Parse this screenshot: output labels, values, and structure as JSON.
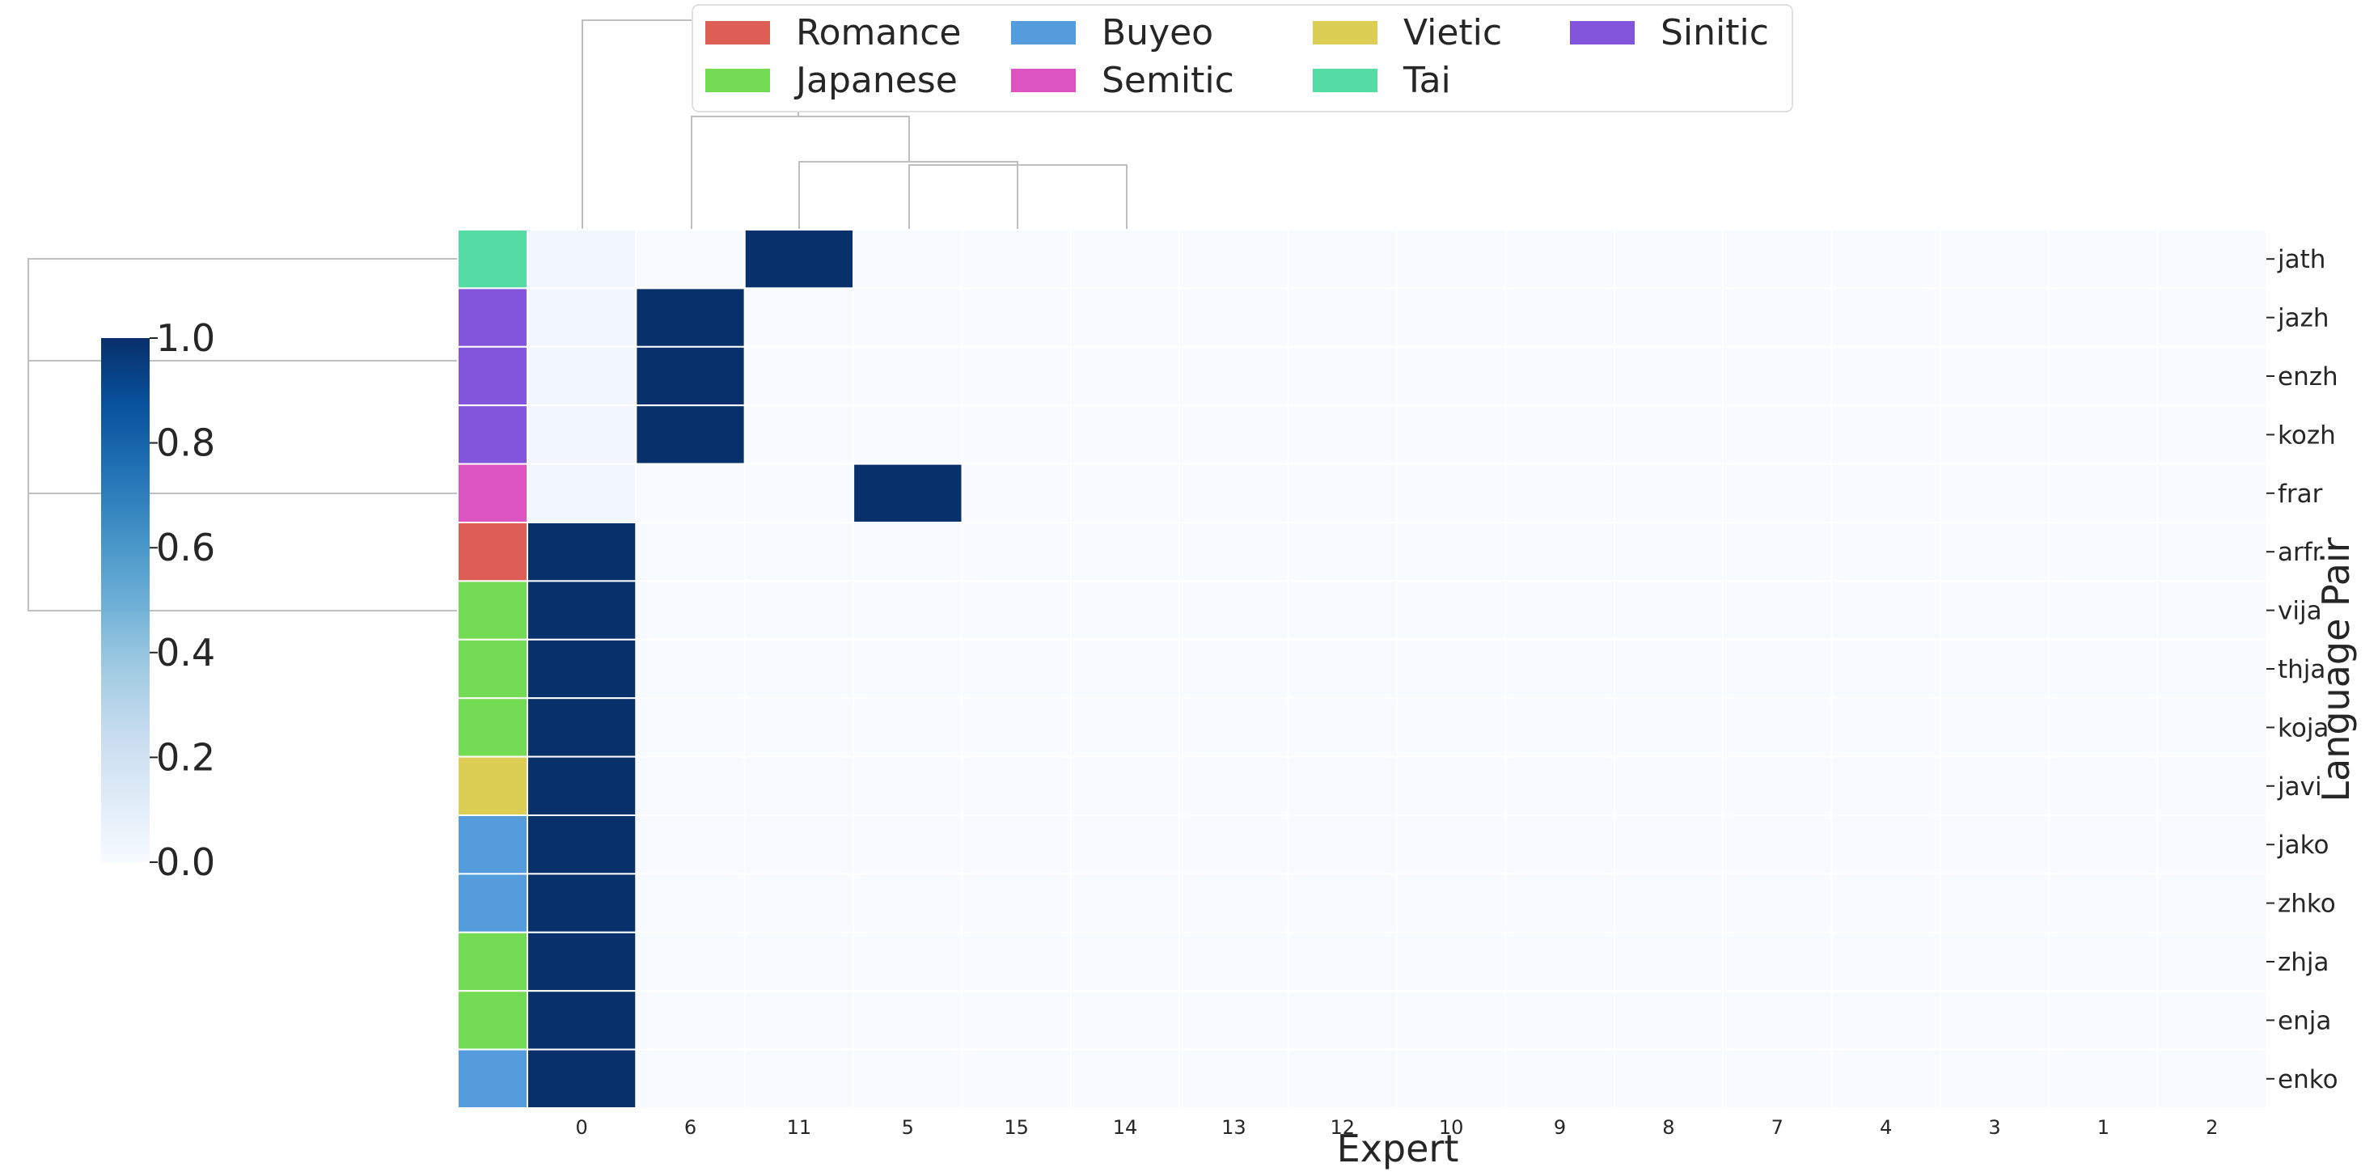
{
  "chart_data": {
    "type": "heatmap",
    "title": "",
    "xlabel": "Expert",
    "ylabel": "Language Pair",
    "x_categories": [
      "0",
      "6",
      "11",
      "5",
      "15",
      "14",
      "13",
      "12",
      "10",
      "9",
      "8",
      "7",
      "4",
      "3",
      "1",
      "2"
    ],
    "y_categories": [
      "jath",
      "jazh",
      "enzh",
      "kozh",
      "frar",
      "arfr",
      "vija",
      "thja",
      "koja",
      "javi",
      "jako",
      "zhko",
      "zhja",
      "enja",
      "enko"
    ],
    "row_groups": [
      "Tai",
      "Sinitic",
      "Sinitic",
      "Sinitic",
      "Semitic",
      "Romance",
      "Japanese",
      "Japanese",
      "Japanese",
      "Vietic",
      "Buyeo",
      "Buyeo",
      "Japanese",
      "Japanese",
      "Buyeo"
    ],
    "values": [
      [
        0.03,
        0,
        1,
        0,
        0,
        0,
        0,
        0,
        0,
        0,
        0,
        0,
        0,
        0,
        0,
        0
      ],
      [
        0.03,
        1,
        0,
        0,
        0,
        0,
        0,
        0,
        0,
        0,
        0,
        0,
        0,
        0,
        0,
        0
      ],
      [
        0.03,
        1,
        0,
        0,
        0,
        0,
        0,
        0,
        0,
        0,
        0,
        0,
        0,
        0,
        0,
        0
      ],
      [
        0.03,
        1,
        0,
        0,
        0,
        0,
        0,
        0,
        0,
        0,
        0,
        0,
        0,
        0,
        0,
        0
      ],
      [
        0.03,
        0,
        0,
        1,
        0,
        0,
        0,
        0,
        0,
        0,
        0,
        0,
        0,
        0,
        0,
        0
      ],
      [
        1,
        0,
        0,
        0,
        0,
        0,
        0,
        0,
        0,
        0,
        0,
        0,
        0,
        0,
        0,
        0
      ],
      [
        1,
        0,
        0,
        0,
        0,
        0,
        0,
        0,
        0,
        0,
        0,
        0,
        0,
        0,
        0,
        0
      ],
      [
        1,
        0,
        0,
        0,
        0,
        0,
        0,
        0,
        0,
        0,
        0,
        0,
        0,
        0,
        0,
        0
      ],
      [
        1,
        0,
        0,
        0,
        0,
        0,
        0,
        0,
        0,
        0,
        0,
        0,
        0,
        0,
        0,
        0
      ],
      [
        1,
        0,
        0,
        0,
        0,
        0,
        0,
        0,
        0,
        0,
        0,
        0,
        0,
        0,
        0,
        0
      ],
      [
        1,
        0,
        0,
        0,
        0,
        0,
        0,
        0,
        0,
        0,
        0,
        0,
        0,
        0,
        0,
        0
      ],
      [
        1,
        0,
        0,
        0,
        0,
        0,
        0,
        0,
        0,
        0,
        0,
        0,
        0,
        0,
        0,
        0
      ],
      [
        1,
        0,
        0,
        0,
        0,
        0,
        0,
        0,
        0,
        0,
        0,
        0,
        0,
        0,
        0,
        0
      ],
      [
        1,
        0,
        0,
        0,
        0,
        0,
        0,
        0,
        0,
        0,
        0,
        0,
        0,
        0,
        0,
        0
      ],
      [
        1,
        0,
        0,
        0,
        0,
        0,
        0,
        0,
        0,
        0,
        0,
        0,
        0,
        0,
        0,
        0
      ]
    ],
    "colorbar": {
      "min": 0.0,
      "max": 1.0,
      "ticks": [
        "0.0",
        "0.2",
        "0.4",
        "0.6",
        "0.8",
        "1.0"
      ]
    },
    "colormap": "Blues",
    "legend": {
      "placement": "top",
      "entries": [
        {
          "name": "Romance",
          "color": "#dc5e54"
        },
        {
          "name": "Japanese",
          "color": "#74dc54"
        },
        {
          "name": "Buyeo",
          "color": "#549cdc"
        },
        {
          "name": "Semitic",
          "color": "#dc54bf"
        },
        {
          "name": "Vietic",
          "color": "#dcce54"
        },
        {
          "name": "Tai",
          "color": "#54dca4"
        },
        {
          "name": "Sinitic",
          "color": "#8354dc"
        }
      ]
    },
    "dendrograms": {
      "row": true,
      "column": true
    }
  }
}
